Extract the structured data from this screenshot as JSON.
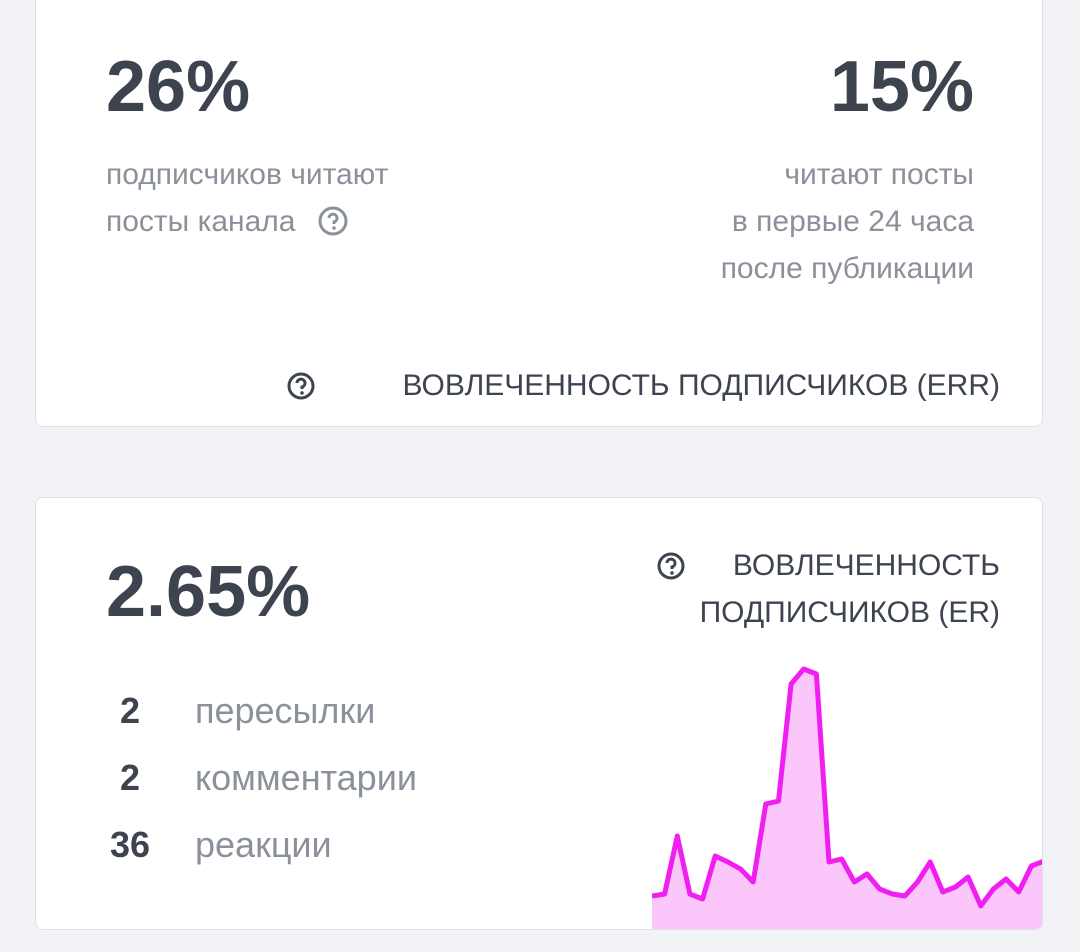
{
  "card1": {
    "left": {
      "value": "26%",
      "lines": [
        "подписчиков читают",
        "посты канала"
      ]
    },
    "right": {
      "value": "15%",
      "lines": [
        "читают посты",
        "в первые 24 часа",
        "после публикации"
      ]
    },
    "footer": "ВОВЛЕЧЕННОСТЬ ПОДПИСЧИКОВ (ERR)"
  },
  "card2": {
    "value": "2.65%",
    "title_lines": [
      "ВОВЛЕЧЕННОСТЬ",
      "ПОДПИСЧИКОВ (ER)"
    ],
    "stats": [
      {
        "count": "2",
        "label": "пересылки"
      },
      {
        "count": "2",
        "label": "комментарии"
      },
      {
        "count": "36",
        "label": "реакции"
      }
    ],
    "sparkline": {
      "type": "area",
      "color": "#f01ef0",
      "values": [
        34,
        36,
        94,
        36,
        31,
        74,
        68,
        61,
        48,
        126,
        129,
        246,
        261,
        256,
        68,
        71,
        48,
        56,
        41,
        36,
        34,
        48,
        68,
        38,
        43,
        53,
        24,
        41,
        51,
        38,
        64,
        69
      ]
    }
  }
}
